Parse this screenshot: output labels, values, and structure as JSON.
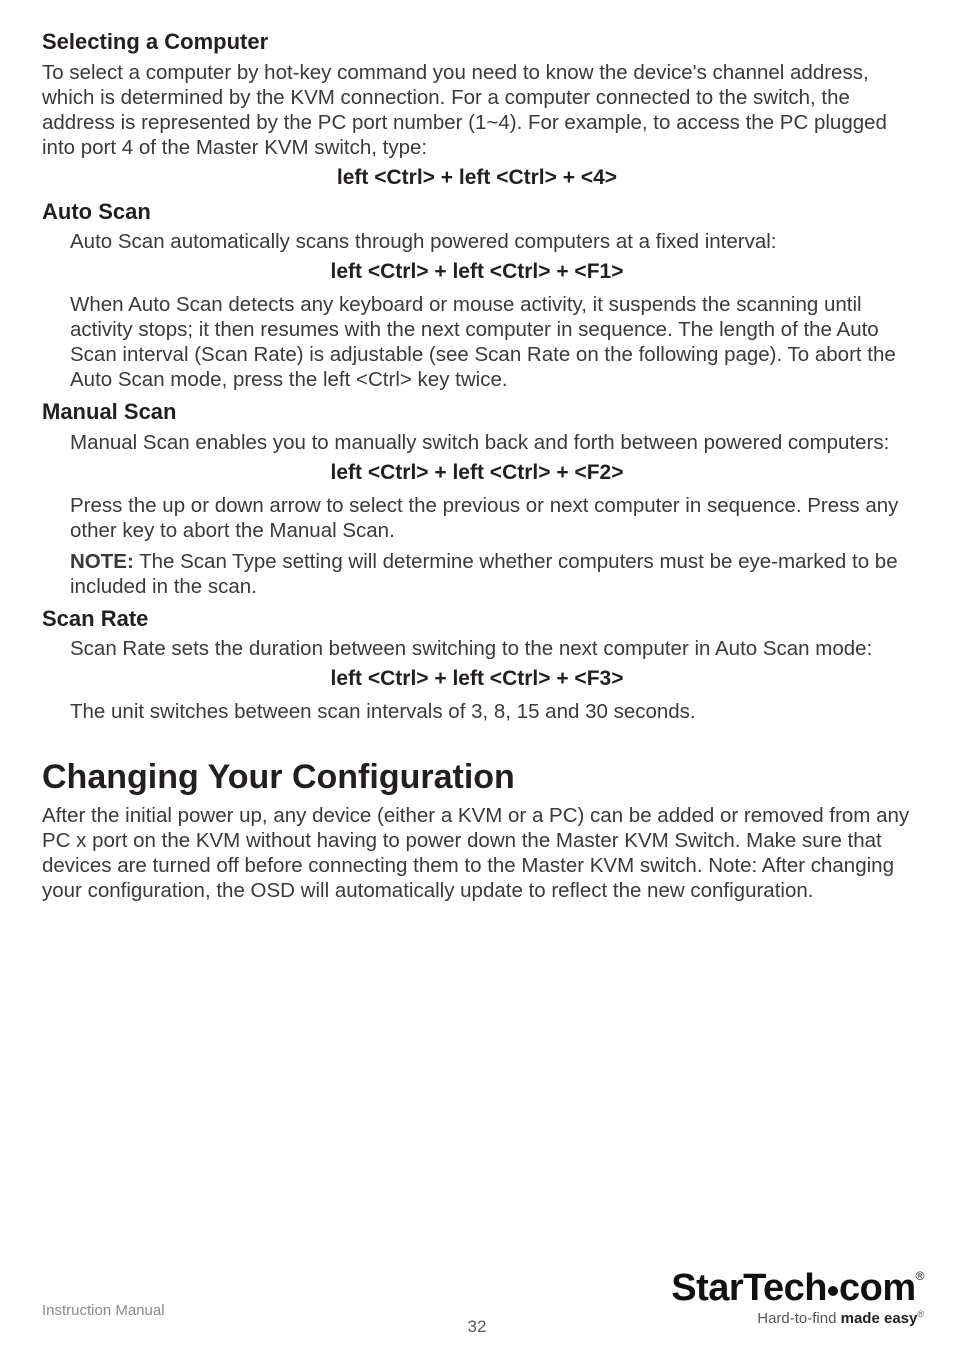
{
  "s1": {
    "h": "Selecting a Computer",
    "p": "To select a computer by hot-key command you need to know the device's channel address, which is determined by the KVM connection. For a computer connected to the switch, the address is represented by the PC port number (1~4). For example, to access the PC plugged into port 4 of the Master KVM switch, type:",
    "cmd": "left <Ctrl> + left <Ctrl> + <4>"
  },
  "s2": {
    "h": "Auto Scan",
    "p1": "Auto Scan automatically scans through powered computers at a fixed interval:",
    "cmd": "left <Ctrl> + left <Ctrl> + <F1>",
    "p2": "When Auto Scan detects any keyboard or mouse activity, it suspends the scanning until activity stops; it then resumes with the next computer in sequence. The length of the Auto Scan interval (Scan Rate) is adjustable (see Scan Rate on the following page). To abort the Auto Scan mode, press the left <Ctrl> key twice."
  },
  "s3": {
    "h": "Manual Scan",
    "p1": "Manual Scan enables you to manually switch back and forth between powered computers:",
    "cmd": "left <Ctrl> + left <Ctrl> + <F2>",
    "p2": "Press the up or down arrow to select the previous or next computer in sequence. Press any other key to abort the Manual Scan.",
    "note_label": "NOTE:",
    "note": " The Scan Type setting will determine whether computers must be eye-marked to be included in the scan."
  },
  "s4": {
    "h": "Scan Rate",
    "p1": "Scan Rate sets the duration between switching to the next computer in Auto Scan mode:",
    "cmd": "left <Ctrl> + left <Ctrl> + <F3>",
    "p2": "The unit switches between scan intervals of 3, 8, 15 and 30 seconds."
  },
  "s5": {
    "h": "Changing Your Configuration",
    "p": "After the initial power up, any device (either a KVM or a PC) can be added or removed from any PC x port on the KVM without having to power down the Master KVM Switch. Make sure that devices are turned off before connecting them to the Master KVM switch. Note: After changing your configuration, the OSD will automatically update to reflect the new configuration."
  },
  "footer": {
    "left": "Instruction Manual",
    "page": "32",
    "brand_a": "StarTech",
    "brand_b": "com",
    "tag_a": "Hard-to-find ",
    "tag_b": "made easy"
  }
}
